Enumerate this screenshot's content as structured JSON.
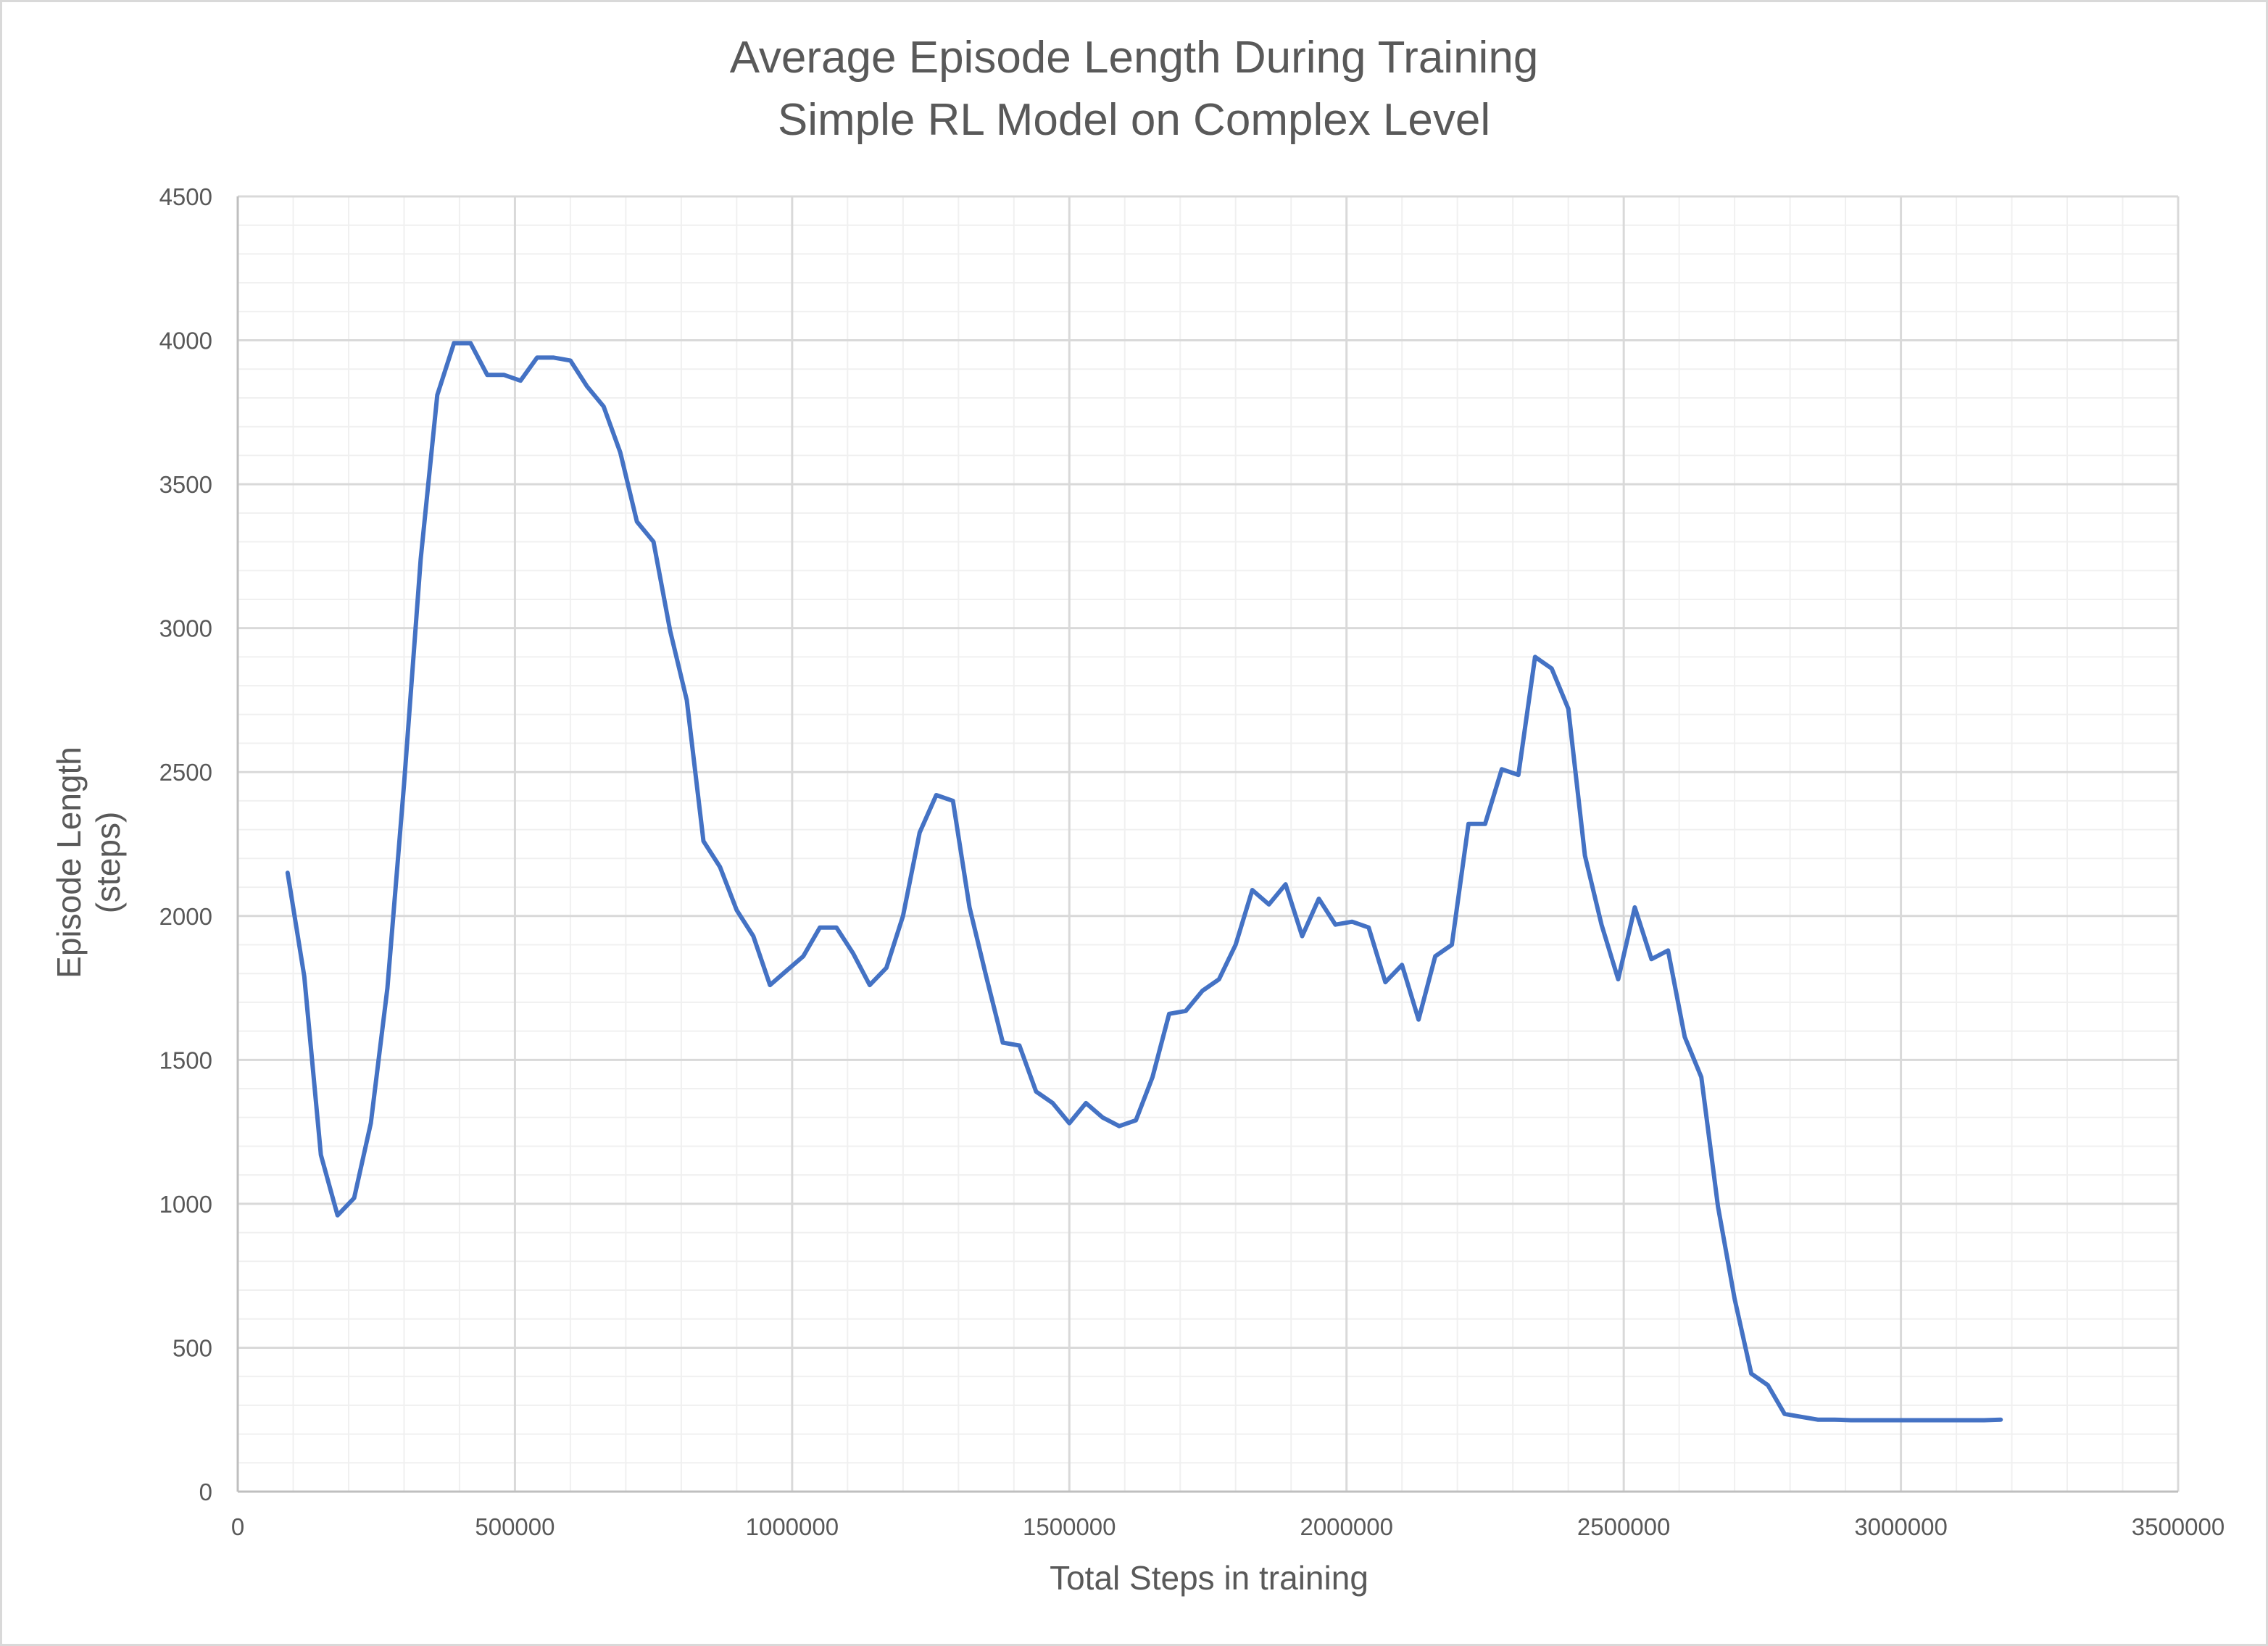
{
  "chart_data": {
    "type": "line",
    "title": "Average Episode Length During Training",
    "subtitle": "Simple RL Model on Complex Level",
    "xlabel": "Total Steps in training",
    "ylabel_line1": "Episode Length",
    "ylabel_line2": "(steps)",
    "xlim": [
      0,
      3500000
    ],
    "ylim": [
      0,
      4500
    ],
    "x_ticks": [
      0,
      500000,
      1000000,
      1500000,
      2000000,
      2500000,
      3000000,
      3500000
    ],
    "x_tick_labels": [
      "0",
      "500000",
      "1000000",
      "1500000",
      "2000000",
      "2500000",
      "3000000",
      "3500000"
    ],
    "y_ticks": [
      0,
      500,
      1000,
      1500,
      2000,
      2500,
      3000,
      3500,
      4000,
      4500
    ],
    "y_tick_labels": [
      "0",
      "500",
      "1000",
      "1500",
      "2000",
      "2500",
      "3000",
      "3500",
      "4000",
      "4500"
    ],
    "major_grid_x_step": 500000,
    "minor_grid_x_step": 100000,
    "major_grid_y_step": 500,
    "minor_grid_y_step": 100,
    "grid": true,
    "line_color": "#4472C4",
    "series": [
      {
        "x": [
          90000,
          120000,
          150000,
          180000,
          210000,
          240000,
          270000,
          300000,
          330000,
          360000,
          390000,
          420000,
          450000,
          480000,
          510000,
          540000,
          570000,
          600000,
          630000,
          660000,
          690000,
          720000,
          750000,
          780000,
          810000,
          840000,
          870000,
          900000,
          930000,
          960000,
          990000,
          1020000,
          1050000,
          1080000,
          1110000,
          1140000,
          1170000,
          1200000,
          1230000,
          1260000,
          1290000,
          1320000,
          1350000,
          1380000,
          1410000,
          1440000,
          1470000,
          1500000,
          1530000,
          1560000,
          1590000,
          1620000,
          1650000,
          1680000,
          1710000,
          1740000,
          1770000,
          1800000,
          1830000,
          1860000,
          1890000,
          1920000,
          1950000,
          1980000,
          2010000,
          2040000,
          2070000,
          2100000,
          2130000,
          2160000,
          2190000,
          2220000,
          2250000,
          2280000,
          2310000,
          2340000,
          2370000,
          2400000,
          2430000,
          2460000,
          2490000,
          2520000,
          2550000,
          2580000,
          2610000,
          2640000,
          2670000,
          2700000,
          2730000,
          2760000,
          2790000,
          2820000,
          2850000,
          2880000,
          2910000,
          2940000,
          2970000,
          3000000,
          3030000,
          3060000,
          3090000,
          3120000,
          3150000,
          3180000
        ],
        "y": [
          2150,
          1790,
          1170,
          960,
          1020,
          1280,
          1750,
          2460,
          3240,
          3810,
          3990,
          3990,
          3880,
          3880,
          3860,
          3940,
          3940,
          3930,
          3840,
          3770,
          3610,
          3370,
          3300,
          2990,
          2750,
          2260,
          2170,
          2020,
          1930,
          1760,
          1810,
          1860,
          1960,
          1960,
          1870,
          1760,
          1820,
          2000,
          2290,
          2420,
          2400,
          2030,
          1790,
          1560,
          1550,
          1390,
          1350,
          1280,
          1350,
          1300,
          1270,
          1290,
          1440,
          1660,
          1670,
          1740,
          1780,
          1900,
          2090,
          2040,
          2110,
          1930,
          2060,
          1970,
          1980,
          1960,
          1770,
          1830,
          1640,
          1860,
          1900,
          2320,
          2320,
          2510,
          2490,
          2900,
          2860,
          2720,
          2210,
          1970,
          1780,
          2030,
          1850,
          1880,
          1580,
          1440,
          990,
          670,
          410,
          370,
          270,
          260,
          250,
          250,
          248,
          248,
          248,
          248,
          248,
          248,
          248,
          248,
          248,
          250
        ]
      }
    ]
  }
}
